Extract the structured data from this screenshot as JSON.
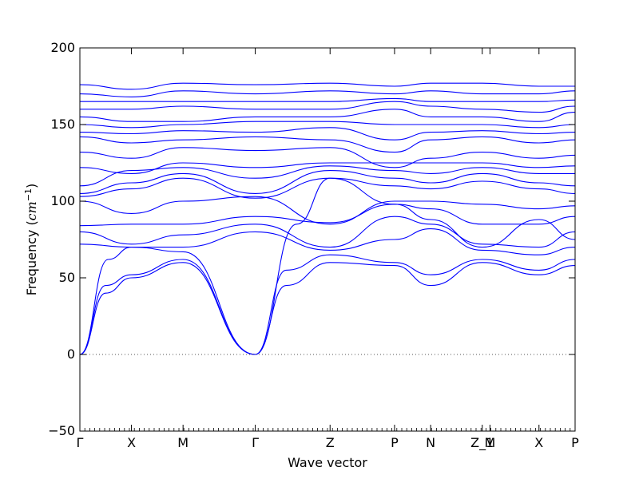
{
  "chart_data": {
    "type": "line",
    "title": "",
    "xlabel": "Wave vector",
    "ylabel_text": "Frequency (",
    "ylabel_unit": "cm",
    "ylabel_exp": "−1",
    "ylabel_close": ")",
    "ylim": [
      -50,
      200
    ],
    "yticks": [
      -50,
      0,
      50,
      100,
      150,
      200
    ],
    "ytick_labels": [
      "−50",
      "0",
      "50",
      "100",
      "150",
      "200"
    ],
    "grid": false,
    "zero_line": "dotted",
    "line_color": "#0000ff",
    "xticks": [
      {
        "pos": 0.0,
        "label": "Γ"
      },
      {
        "pos": 1.0,
        "label": "X"
      },
      {
        "pos": 2.0,
        "label": "M"
      },
      {
        "pos": 3.4,
        "label": "Γ"
      },
      {
        "pos": 4.85,
        "label": "Z"
      },
      {
        "pos": 6.1,
        "label": "P"
      },
      {
        "pos": 6.8,
        "label": "N"
      },
      {
        "pos": 7.8,
        "label": "Z_1"
      },
      {
        "pos": 7.95,
        "label": "M"
      },
      {
        "pos": 8.9,
        "label": "X"
      },
      {
        "pos": 9.6,
        "label": "P"
      }
    ],
    "series": [
      {
        "x": [
          0,
          0.5,
          1.0,
          2.0,
          3.4
        ],
        "y": [
          0,
          40,
          50,
          60,
          0
        ]
      },
      {
        "x": [
          0,
          0.5,
          1.0,
          2.0,
          3.4
        ],
        "y": [
          0,
          45,
          52,
          62,
          0
        ]
      },
      {
        "x": [
          0,
          0.55,
          1.0,
          2.0,
          3.4
        ],
        "y": [
          0,
          62,
          70,
          67,
          0
        ]
      },
      {
        "x": [
          3.4,
          4.0,
          4.85,
          6.1,
          6.8,
          7.8,
          8.9,
          9.6
        ],
        "y": [
          0,
          45,
          60,
          58,
          45,
          60,
          52,
          58
        ]
      },
      {
        "x": [
          3.4,
          4.0,
          4.85,
          6.1,
          6.8,
          7.8,
          8.9,
          9.6
        ],
        "y": [
          0,
          55,
          65,
          60,
          52,
          62,
          55,
          62
        ]
      },
      {
        "x": [
          3.4,
          4.2,
          4.85,
          6.1,
          6.8,
          7.8,
          8.9,
          9.6
        ],
        "y": [
          0,
          85,
          115,
          98,
          88,
          70,
          88,
          75
        ]
      },
      {
        "x": [
          0,
          1.0,
          2.0,
          3.4,
          4.85,
          6.1,
          6.8,
          7.8,
          8.9,
          9.6
        ],
        "y": [
          72,
          70,
          70,
          80,
          68,
          75,
          82,
          68,
          65,
          70
        ]
      },
      {
        "x": [
          0,
          1.0,
          2.0,
          3.4,
          4.85,
          6.1,
          6.8,
          7.8,
          8.9,
          9.6
        ],
        "y": [
          80,
          72,
          78,
          85,
          70,
          90,
          85,
          72,
          70,
          80
        ]
      },
      {
        "x": [
          0,
          1.0,
          2.0,
          3.4,
          4.85,
          6.1,
          6.8,
          7.8,
          8.9,
          9.6
        ],
        "y": [
          84,
          85,
          85,
          90,
          86,
          98,
          95,
          85,
          85,
          90
        ]
      },
      {
        "x": [
          0,
          1.0,
          2.0,
          3.4,
          4.85,
          6.1,
          6.8,
          7.8,
          8.9,
          9.6
        ],
        "y": [
          100,
          92,
          100,
          103,
          85,
          100,
          100,
          98,
          95,
          97
        ]
      },
      {
        "x": [
          0,
          1.0,
          2.0,
          3.4,
          4.85,
          6.1,
          6.8,
          7.8,
          8.9,
          9.6
        ],
        "y": [
          103,
          108,
          115,
          102,
          115,
          110,
          108,
          113,
          108,
          105
        ]
      },
      {
        "x": [
          0,
          1.0,
          2.0,
          3.4,
          4.85,
          6.1,
          6.8,
          7.8,
          8.9,
          9.6
        ],
        "y": [
          105,
          112,
          118,
          105,
          120,
          115,
          112,
          118,
          112,
          110
        ]
      },
      {
        "x": [
          0,
          1.0,
          2.0,
          3.4,
          4.85,
          6.1,
          6.8,
          7.8,
          8.9,
          9.6
        ],
        "y": [
          110,
          120,
          122,
          115,
          123,
          120,
          118,
          122,
          118,
          118
        ]
      },
      {
        "x": [
          0,
          1.0,
          2.0,
          3.4,
          4.85,
          6.1,
          6.8,
          7.8,
          8.9,
          9.6
        ],
        "y": [
          122,
          118,
          125,
          122,
          125,
          125,
          125,
          125,
          122,
          123
        ]
      },
      {
        "x": [
          0,
          1.0,
          2.0,
          3.4,
          4.85,
          6.1,
          6.8,
          7.8,
          8.9,
          9.6
        ],
        "y": [
          132,
          128,
          135,
          133,
          135,
          122,
          128,
          132,
          128,
          130
        ]
      },
      {
        "x": [
          0,
          1.0,
          2.0,
          3.4,
          4.85,
          6.1,
          6.8,
          7.8,
          8.9,
          9.6
        ],
        "y": [
          142,
          138,
          140,
          142,
          140,
          132,
          140,
          142,
          138,
          140
        ]
      },
      {
        "x": [
          0,
          1.0,
          2.0,
          3.4,
          4.85,
          6.1,
          6.8,
          7.8,
          8.9,
          9.6
        ],
        "y": [
          145,
          144,
          146,
          145,
          148,
          140,
          145,
          146,
          144,
          145
        ]
      },
      {
        "x": [
          0,
          1.0,
          2.0,
          3.4,
          4.85,
          6.1,
          6.8,
          7.8,
          8.9,
          9.6
        ],
        "y": [
          150,
          148,
          150,
          152,
          152,
          150,
          150,
          150,
          148,
          150
        ]
      },
      {
        "x": [
          0,
          1.0,
          2.0,
          3.4,
          4.85,
          6.1,
          6.8,
          7.8,
          8.9,
          9.6
        ],
        "y": [
          155,
          152,
          152,
          155,
          155,
          160,
          155,
          155,
          152,
          158
        ]
      },
      {
        "x": [
          0,
          1.0,
          2.0,
          3.4,
          4.85,
          6.1,
          6.8,
          7.8,
          8.9,
          9.6
        ],
        "y": [
          160,
          160,
          162,
          160,
          160,
          165,
          162,
          160,
          158,
          162
        ]
      },
      {
        "x": [
          0,
          1.0,
          2.0,
          3.4,
          4.85,
          6.1,
          6.8,
          7.8,
          8.9,
          9.6
        ],
        "y": [
          165,
          165,
          165,
          165,
          165,
          167,
          165,
          165,
          165,
          166
        ]
      },
      {
        "x": [
          0,
          1.0,
          2.0,
          3.4,
          4.85,
          6.1,
          6.8,
          7.8,
          8.9,
          9.6
        ],
        "y": [
          170,
          168,
          172,
          170,
          172,
          170,
          172,
          170,
          170,
          172
        ]
      },
      {
        "x": [
          0,
          1.0,
          2.0,
          3.4,
          4.85,
          6.1,
          6.8,
          7.8,
          8.9,
          9.6
        ],
        "y": [
          176,
          173,
          177,
          176,
          177,
          175,
          177,
          177,
          175,
          175
        ]
      }
    ]
  }
}
